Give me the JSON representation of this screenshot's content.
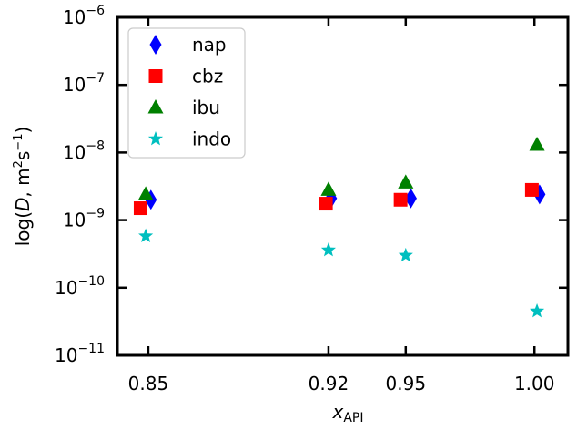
{
  "chart_data": {
    "type": "scatter",
    "title": "",
    "xlabel_base": "x",
    "xlabel_sub": "API",
    "ylabel": "log(D, m²s⁻¹)",
    "ylabel_parts": {
      "prefix": "log(",
      "var": "D",
      "mid": ", m",
      "sup2": "2",
      "s": "s",
      "supm1": "−1",
      "suffix": ")"
    },
    "y_scale": "log",
    "ylim": [
      1e-11,
      1e-06
    ],
    "xlim": [
      0.838,
      1.013
    ],
    "x_ticks": [
      0.85,
      0.92,
      0.95,
      1.0
    ],
    "x_tick_labels": [
      "0.85",
      "0.92",
      "0.95",
      "1.00"
    ],
    "y_ticks": [
      -11,
      -10,
      -9,
      -8,
      -7,
      -6
    ],
    "y_tick_base": "10",
    "y_tick_exps": [
      "−11",
      "−10",
      "−9",
      "−8",
      "−7",
      "−6"
    ],
    "legend_position": "top-left",
    "grid": false,
    "series": [
      {
        "name": "nap",
        "marker": "thin-diamond",
        "color": "#0000ff",
        "x": [
          0.851,
          0.921,
          0.952,
          1.002
        ],
        "y": [
          2e-09,
          2.1e-09,
          2.1e-09,
          2.4e-09
        ]
      },
      {
        "name": "cbz",
        "marker": "square",
        "color": "#ff0000",
        "x": [
          0.847,
          0.919,
          0.948,
          0.999
        ],
        "y": [
          1.5e-09,
          1.75e-09,
          2e-09,
          2.8e-09
        ]
      },
      {
        "name": "ibu",
        "marker": "triangle",
        "color": "#008000",
        "x": [
          0.849,
          0.92,
          0.95,
          1.001
        ],
        "y": [
          2.4e-09,
          2.8e-09,
          3.6e-09,
          1.3e-08
        ]
      },
      {
        "name": "indo",
        "marker": "star",
        "color": "#00bfbf",
        "x": [
          0.849,
          0.92,
          0.95,
          1.001
        ],
        "y": [
          5.8e-10,
          3.6e-10,
          3e-10,
          4.5e-11
        ]
      }
    ]
  }
}
